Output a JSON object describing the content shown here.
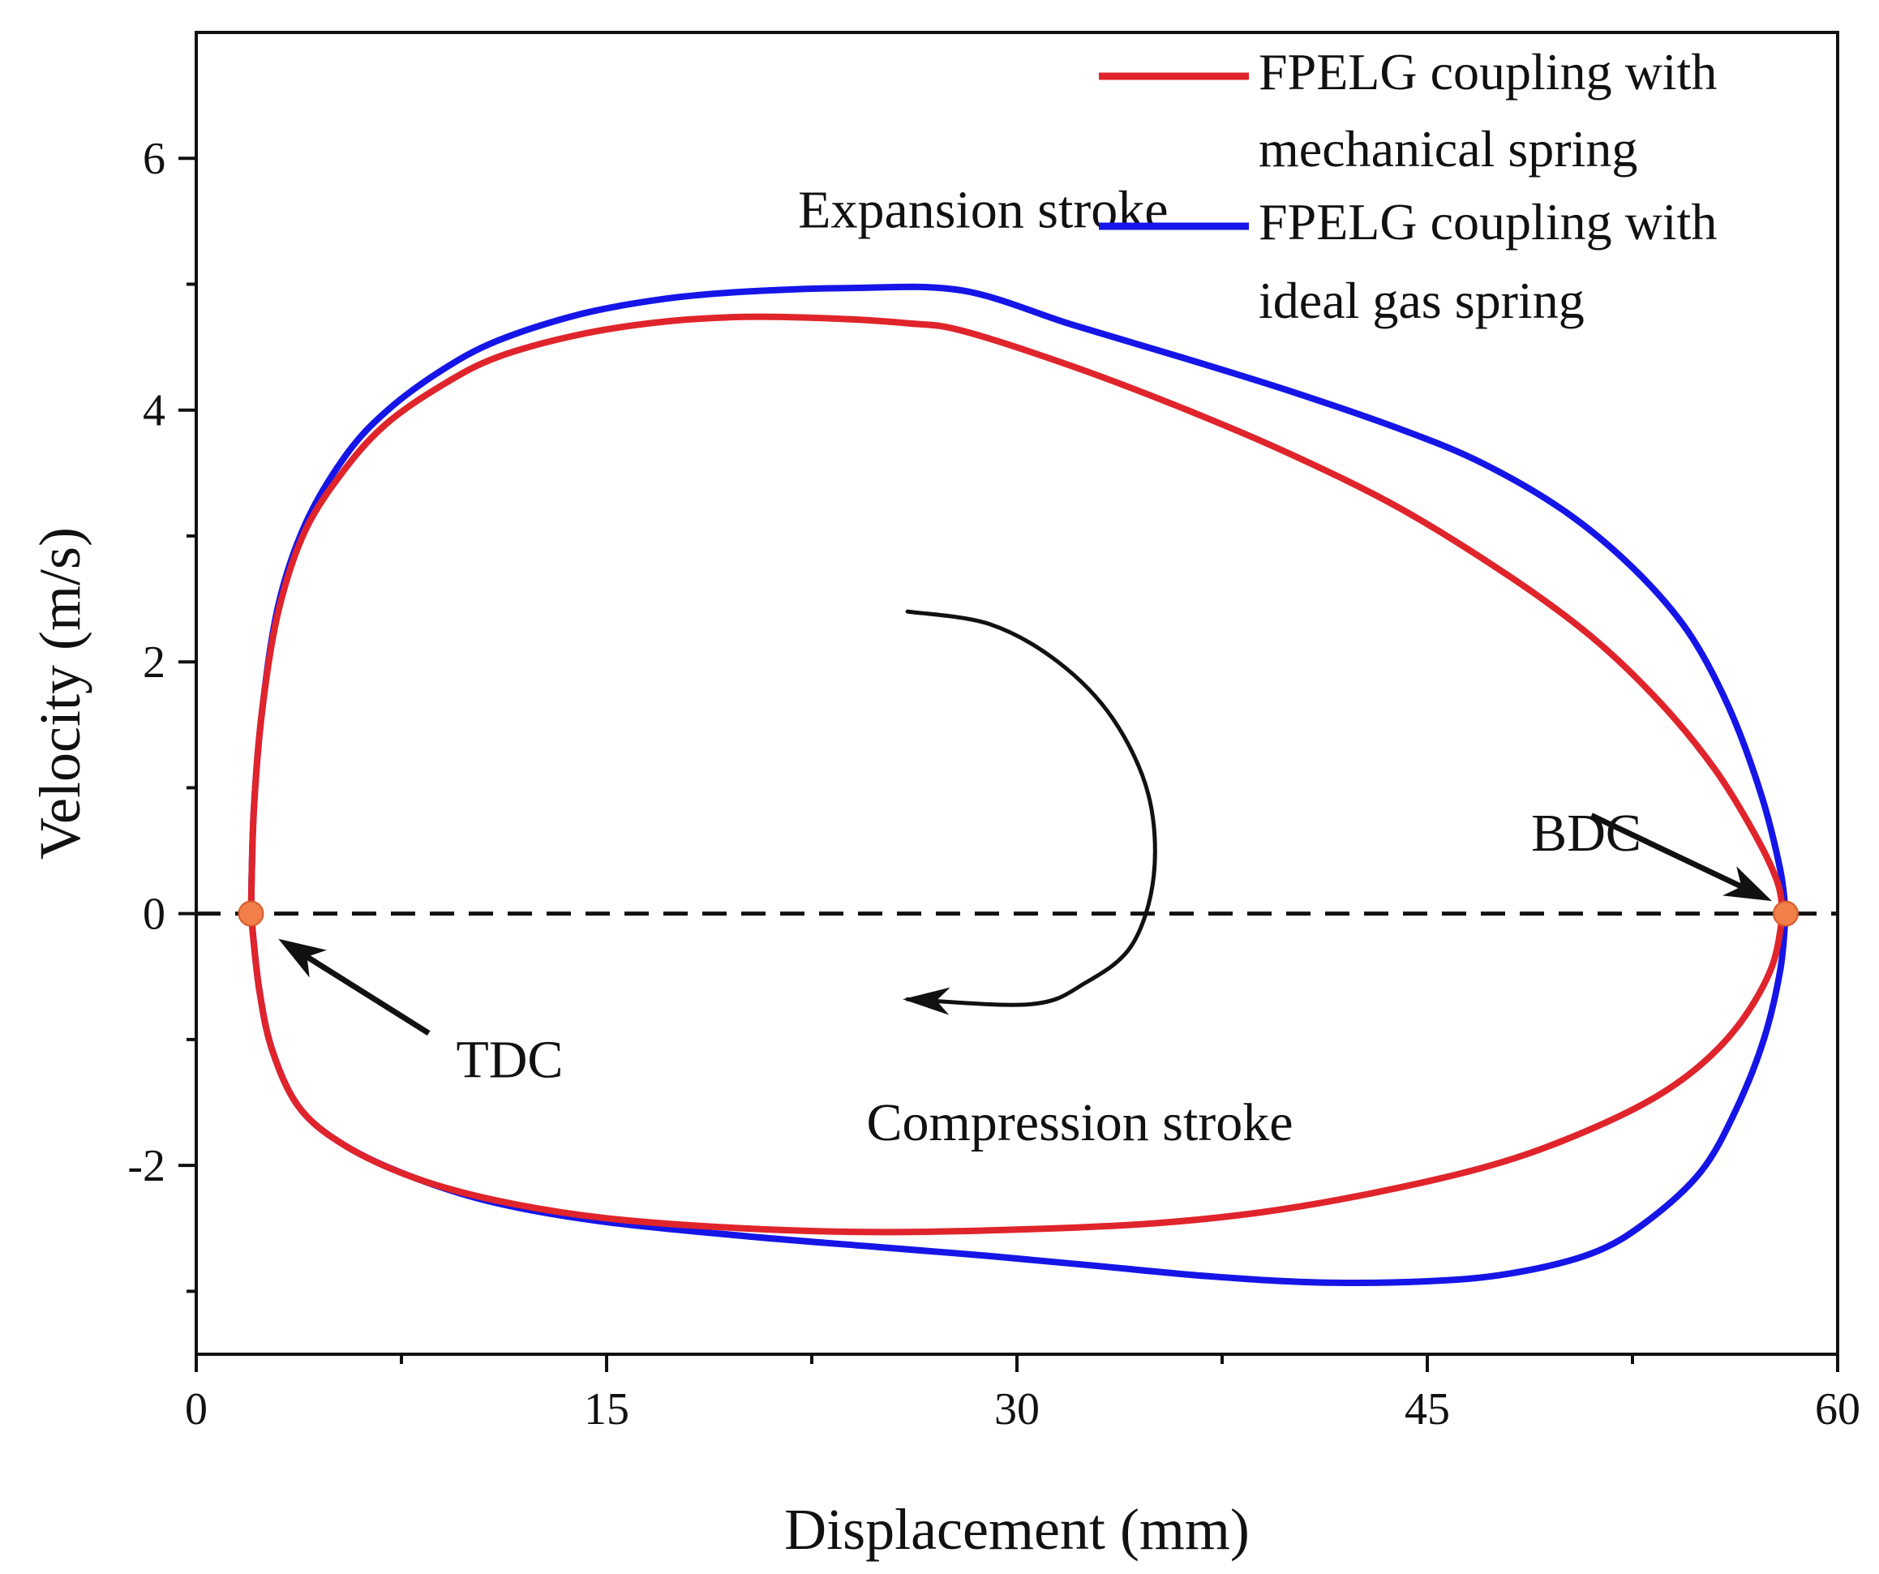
{
  "chart_data": {
    "type": "line",
    "xlabel": "Displacement (mm)",
    "ylabel": "Velocity (m/s)",
    "xlim": [
      0,
      60
    ],
    "ylim": [
      -3.5,
      7
    ],
    "xticks": [
      0,
      15,
      30,
      45,
      60
    ],
    "xtick_labels": [
      "0",
      "15",
      "30",
      "45",
      "60"
    ],
    "yticks": [
      -2,
      0,
      2,
      4,
      6
    ],
    "ytick_labels": [
      "-2",
      "0",
      "2",
      "4",
      "6"
    ],
    "grid": false,
    "legend_position": "top-right",
    "series": [
      {
        "name": "FPELG coupling with mechanical spring",
        "legend_lines": [
          "FPELG coupling with",
          "mechanical spring"
        ],
        "color": "#e0242b",
        "expansion": [
          [
            2,
            0
          ],
          [
            2.1,
            0.8
          ],
          [
            2.4,
            1.6
          ],
          [
            3,
            2.4
          ],
          [
            4,
            3.05
          ],
          [
            5.5,
            3.55
          ],
          [
            7,
            3.9
          ],
          [
            9,
            4.2
          ],
          [
            11,
            4.42
          ],
          [
            14,
            4.6
          ],
          [
            17,
            4.7
          ],
          [
            20,
            4.74
          ],
          [
            23,
            4.73
          ],
          [
            26,
            4.69
          ],
          [
            28,
            4.63
          ],
          [
            32,
            4.35
          ],
          [
            36,
            4.02
          ],
          [
            40,
            3.65
          ],
          [
            44,
            3.22
          ],
          [
            48,
            2.68
          ],
          [
            51,
            2.2
          ],
          [
            53.5,
            1.68
          ],
          [
            55.5,
            1.15
          ],
          [
            57,
            0.62
          ],
          [
            57.8,
            0.25
          ],
          [
            58,
            0
          ]
        ],
        "compression": [
          [
            58,
            0
          ],
          [
            57.6,
            -0.42
          ],
          [
            56.5,
            -0.85
          ],
          [
            55,
            -1.2
          ],
          [
            53,
            -1.5
          ],
          [
            50,
            -1.8
          ],
          [
            47,
            -2.02
          ],
          [
            43,
            -2.22
          ],
          [
            39,
            -2.37
          ],
          [
            35,
            -2.46
          ],
          [
            30,
            -2.51
          ],
          [
            25,
            -2.53
          ],
          [
            20,
            -2.5
          ],
          [
            15,
            -2.42
          ],
          [
            11,
            -2.28
          ],
          [
            8,
            -2.1
          ],
          [
            5.5,
            -1.85
          ],
          [
            3.8,
            -1.55
          ],
          [
            2.8,
            -1.1
          ],
          [
            2.3,
            -0.6
          ],
          [
            2,
            0
          ]
        ]
      },
      {
        "name": "FPELG coupling with ideal gas spring",
        "legend_lines": [
          "FPELG coupling with",
          "ideal gas spring"
        ],
        "color": "#1515e8",
        "expansion": [
          [
            2,
            0
          ],
          [
            2.1,
            0.8
          ],
          [
            2.4,
            1.6
          ],
          [
            3,
            2.45
          ],
          [
            4,
            3.1
          ],
          [
            5.5,
            3.65
          ],
          [
            7,
            4.0
          ],
          [
            9,
            4.32
          ],
          [
            11,
            4.55
          ],
          [
            14,
            4.76
          ],
          [
            17,
            4.88
          ],
          [
            20,
            4.94
          ],
          [
            24,
            4.97
          ],
          [
            28,
            4.95
          ],
          [
            32,
            4.68
          ],
          [
            36,
            4.42
          ],
          [
            40,
            4.15
          ],
          [
            44,
            3.85
          ],
          [
            47,
            3.58
          ],
          [
            50,
            3.2
          ],
          [
            52.5,
            2.75
          ],
          [
            54.5,
            2.25
          ],
          [
            56,
            1.65
          ],
          [
            57.2,
            0.95
          ],
          [
            57.9,
            0.35
          ],
          [
            58.1,
            0
          ]
        ],
        "compression": [
          [
            58.1,
            0
          ],
          [
            57.9,
            -0.45
          ],
          [
            57.3,
            -1.0
          ],
          [
            56.3,
            -1.55
          ],
          [
            55,
            -2.05
          ],
          [
            53,
            -2.45
          ],
          [
            51,
            -2.7
          ],
          [
            48,
            -2.86
          ],
          [
            45,
            -2.92
          ],
          [
            41,
            -2.93
          ],
          [
            37,
            -2.88
          ],
          [
            33,
            -2.8
          ],
          [
            29,
            -2.72
          ],
          [
            25,
            -2.65
          ],
          [
            20,
            -2.56
          ],
          [
            15,
            -2.45
          ],
          [
            11,
            -2.3
          ],
          [
            8,
            -2.1
          ],
          [
            5.5,
            -1.85
          ],
          [
            3.8,
            -1.55
          ],
          [
            2.8,
            -1.1
          ],
          [
            2.3,
            -0.6
          ],
          [
            2,
            0
          ]
        ]
      }
    ],
    "zero_line": {
      "y": 0,
      "style": "dashed",
      "color": "#111111"
    },
    "markers": [
      {
        "label": "TDC",
        "x": 2,
        "y": 0,
        "color": "#f07f4a"
      },
      {
        "label": "BDC",
        "x": 58.1,
        "y": 0,
        "color": "#f07f4a"
      }
    ],
    "direction_arrow": {
      "color": "#111111",
      "path": [
        [
          26,
          2.4
        ],
        [
          29,
          2.3
        ],
        [
          31.5,
          2.0
        ],
        [
          33.5,
          1.55
        ],
        [
          34.8,
          0.95
        ],
        [
          35,
          0.3
        ],
        [
          34.2,
          -0.25
        ],
        [
          32.5,
          -0.55
        ],
        [
          30.5,
          -0.72
        ],
        [
          26,
          -0.68
        ]
      ]
    },
    "annotations": [
      {
        "name": "expansion-stroke-label",
        "text": "Expansion stroke",
        "x": 22,
        "y": 5.45
      },
      {
        "name": "compression-stroke-label",
        "text": "Compression stroke",
        "x": 24.5,
        "y": -1.8
      },
      {
        "name": "bdc-label",
        "text": "BDC",
        "x": 48.8,
        "y": 0.5
      },
      {
        "name": "tdc-label",
        "text": "TDC",
        "x": 9.5,
        "y": -1.3
      }
    ],
    "pointer_arrows": [
      {
        "name": "bdc-pointer-arrow",
        "from": [
          51,
          0.78
        ],
        "to": [
          57.6,
          0.1
        ]
      },
      {
        "name": "tdc-pointer-arrow",
        "from": [
          8.5,
          -0.95
        ],
        "to": [
          3,
          -0.2
        ]
      }
    ]
  }
}
